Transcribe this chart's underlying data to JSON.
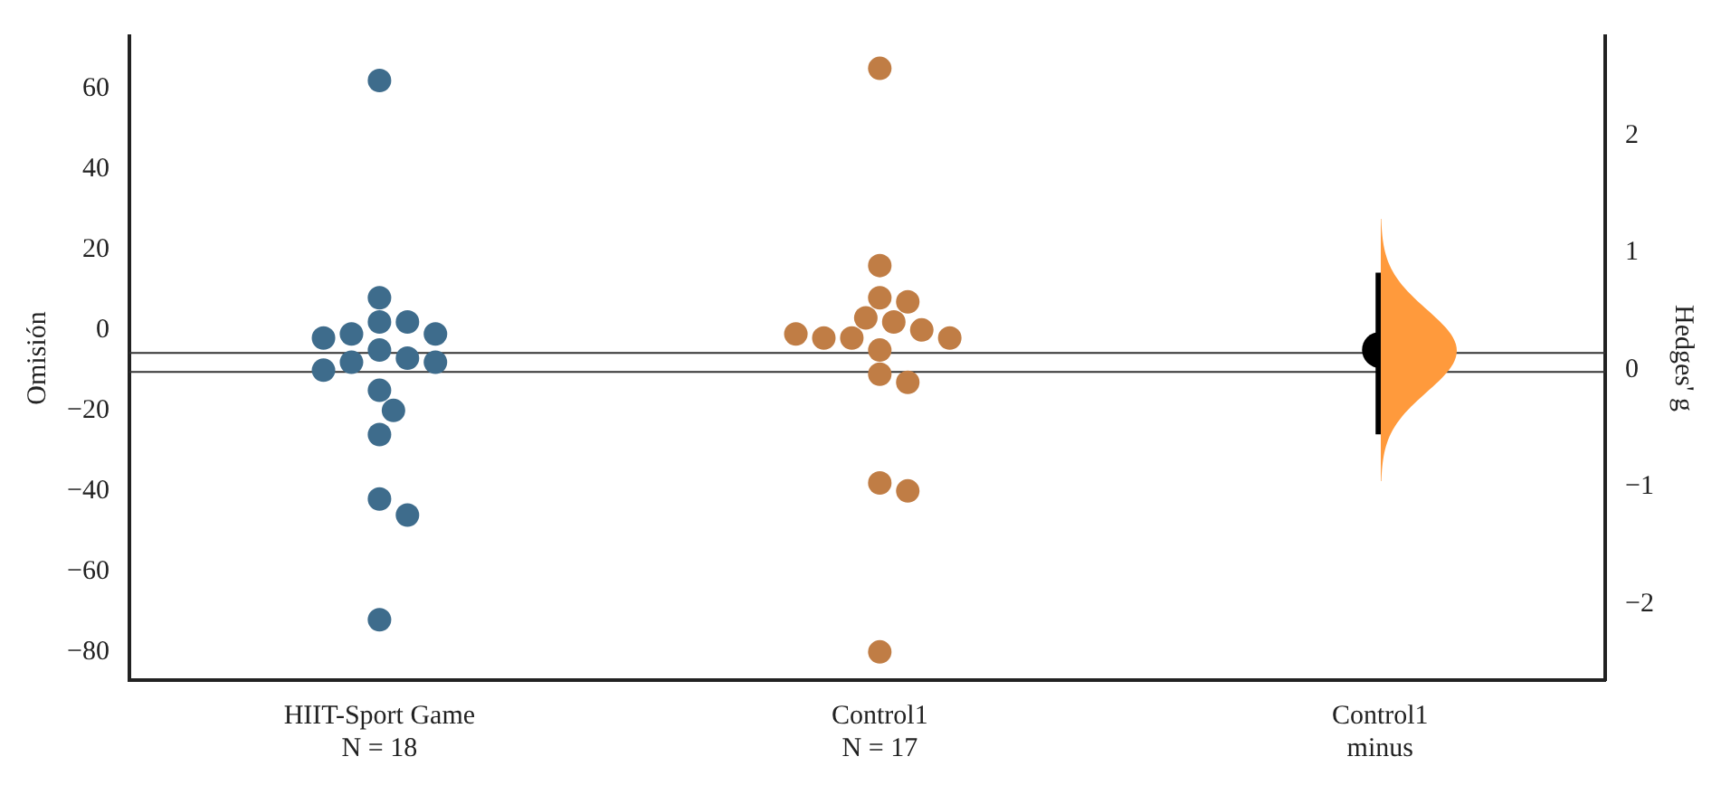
{
  "chart_data": {
    "type": "scatter",
    "ylabel": "Omisión",
    "y2label": "Hedges' g",
    "categories": [
      "HIIT-Sport Game\nN = 18",
      "Control1\nN = 17",
      "Control1\nminus"
    ],
    "series": [
      {
        "color": "#3e6c8c",
        "x": [
          "HIIT-Sport Game\nN = 18",
          "HIIT-Sport Game\nN = 18",
          "HIIT-Sport Game\nN = 18",
          "HIIT-Sport Game\nN = 18",
          "HIIT-Sport Game\nN = 18",
          "HIIT-Sport Game\nN = 18",
          "HIIT-Sport Game\nN = 18",
          "HIIT-Sport Game\nN = 18",
          "HIIT-Sport Game\nN = 18",
          "HIIT-Sport Game\nN = 18",
          "HIIT-Sport Game\nN = 18",
          "HIIT-Sport Game\nN = 18",
          "HIIT-Sport Game\nN = 18",
          "HIIT-Sport Game\nN = 18",
          "HIIT-Sport Game\nN = 18",
          "HIIT-Sport Game\nN = 18",
          "HIIT-Sport Game\nN = 18",
          "HIIT-Sport Game\nN = 18"
        ],
        "values": [
          62,
          8,
          2,
          2,
          -1,
          -1,
          -2,
          -5,
          -7,
          -8,
          -8,
          -10,
          -15,
          -20,
          -26,
          -42,
          -46,
          -72
        ]
      },
      {
        "color": "#c07d45",
        "x": [
          "Control1\nN = 17",
          "Control1\nN = 17",
          "Control1\nN = 17",
          "Control1\nN = 17",
          "Control1\nN = 17",
          "Control1\nN = 17",
          "Control1\nN = 17",
          "Control1\nN = 17",
          "Control1\nN = 17",
          "Control1\nN = 17",
          "Control1\nN = 17",
          "Control1\nN = 17",
          "Control1\nN = 17",
          "Control1\nN = 17",
          "Control1\nN = 17",
          "Control1\nN = 17",
          "Control1\nN = 17"
        ],
        "values": [
          65,
          16,
          8,
          7,
          3,
          2,
          0,
          -2,
          -2,
          -2,
          -1,
          -5,
          -11,
          -13,
          -38,
          -40,
          -80
        ]
      },
      {
        "color": "#000000",
        "axis": "y2",
        "x": [
          "Control1\nminus"
        ],
        "values": [
          0.17
        ],
        "errors": [
          [
            -0.55,
            0.83
          ]
        ]
      }
    ],
    "ylim": [
      -87,
      73
    ],
    "yticks": [
      -80,
      -60,
      -40,
      -20,
      0,
      20,
      40,
      60
    ],
    "y2lim": [
      -2.65,
      2.85
    ],
    "y2ticks": [
      -2,
      -1,
      0,
      1,
      2
    ],
    "ref_lines": [
      {
        "axis": "y",
        "value": -10.4
      },
      {
        "axis": "y",
        "value": -5.7
      }
    ],
    "marker": "circle",
    "grid": false,
    "legend": false
  }
}
